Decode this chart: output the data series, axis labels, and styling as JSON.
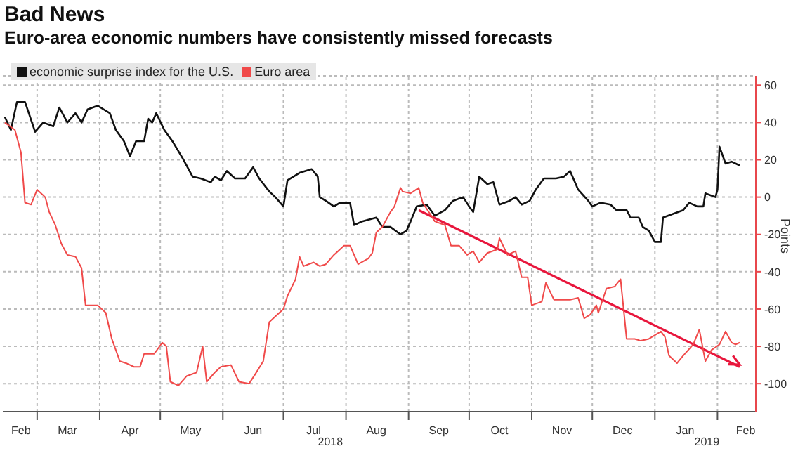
{
  "chart_data": {
    "type": "line",
    "title": "Bad News",
    "subtitle": "Euro-area economic numbers have consistently missed forecasts",
    "ylabel": "Points",
    "xlim": [
      "2018-02-12",
      "2019-02-20"
    ],
    "xticks": [
      {
        "value": "2018-02-21",
        "label": "Feb"
      },
      {
        "value": "2018-03-01",
        "label": null
      },
      {
        "value": "2018-03-16",
        "label": "Mar"
      },
      {
        "value": "2018-04-01",
        "label": null
      },
      {
        "value": "2018-04-16",
        "label": "Apr"
      },
      {
        "value": "2018-05-01",
        "label": null
      },
      {
        "value": "2018-05-16",
        "label": "May"
      },
      {
        "value": "2018-06-01",
        "label": null
      },
      {
        "value": "2018-06-16",
        "label": "Jun"
      },
      {
        "value": "2018-07-01",
        "label": null
      },
      {
        "value": "2018-07-16",
        "label": "Jul"
      },
      {
        "value": "2018-08-01",
        "label": null
      },
      {
        "value": "2018-08-16",
        "label": "Aug"
      },
      {
        "value": "2018-09-01",
        "label": null
      },
      {
        "value": "2018-09-16",
        "label": "Sep"
      },
      {
        "value": "2018-10-01",
        "label": null
      },
      {
        "value": "2018-10-16",
        "label": "Oct"
      },
      {
        "value": "2018-11-01",
        "label": null
      },
      {
        "value": "2018-11-16",
        "label": "Nov"
      },
      {
        "value": "2018-12-01",
        "label": null
      },
      {
        "value": "2018-12-16",
        "label": "Dec"
      },
      {
        "value": "2019-01-01",
        "label": null
      },
      {
        "value": "2019-01-16",
        "label": "Jan"
      },
      {
        "value": "2019-02-01",
        "label": null
      },
      {
        "value": "2019-02-15",
        "label": "Feb"
      }
    ],
    "ylim": [
      -115,
      65
    ],
    "yticks": [
      -100,
      -80,
      -60,
      -40,
      -20,
      0,
      20,
      40,
      60
    ],
    "grid": true,
    "legend": "top left",
    "annotations": [
      "2018",
      "2019"
    ],
    "series": [
      {
        "name": "economic surprise index for the U.S.",
        "color": "#111111",
        "x": [
          "2018-02-13",
          "2018-02-16",
          "2018-02-19",
          "2018-02-23",
          "2018-02-28",
          "2018-03-04",
          "2018-03-09",
          "2018-03-12",
          "2018-03-16",
          "2018-03-20",
          "2018-03-23",
          "2018-03-26",
          "2018-03-31",
          "2018-04-06",
          "2018-04-09",
          "2018-04-13",
          "2018-04-16",
          "2018-04-19",
          "2018-04-23",
          "2018-04-25",
          "2018-04-27",
          "2018-04-29",
          "2018-05-03",
          "2018-05-07",
          "2018-05-12",
          "2018-05-17",
          "2018-05-21",
          "2018-05-26",
          "2018-05-28",
          "2018-05-31",
          "2018-06-03",
          "2018-06-07",
          "2018-06-12",
          "2018-06-16",
          "2018-06-19",
          "2018-06-24",
          "2018-06-27",
          "2018-07-01",
          "2018-07-03",
          "2018-07-09",
          "2018-07-15",
          "2018-07-18",
          "2018-07-19",
          "2018-07-22",
          "2018-07-26",
          "2018-07-29",
          "2018-08-03",
          "2018-08-05",
          "2018-08-09",
          "2018-08-16",
          "2018-08-19",
          "2018-08-23",
          "2018-08-28",
          "2018-08-31",
          "2018-09-02",
          "2018-09-05",
          "2018-09-10",
          "2018-09-14",
          "2018-09-19",
          "2018-09-23",
          "2018-09-28",
          "2018-10-01",
          "2018-10-03",
          "2018-10-06",
          "2018-10-10",
          "2018-10-13",
          "2018-10-16",
          "2018-10-21",
          "2018-10-24",
          "2018-10-27",
          "2018-10-31",
          "2018-11-03",
          "2018-11-07",
          "2018-11-13",
          "2018-11-17",
          "2018-11-20",
          "2018-11-24",
          "2018-11-29",
          "2018-12-01",
          "2018-12-05",
          "2018-12-10",
          "2018-12-13",
          "2018-12-18",
          "2018-12-20",
          "2018-12-24",
          "2018-12-26",
          "2018-12-29",
          "2019-01-01",
          "2019-01-04",
          "2019-01-05",
          "2019-01-10",
          "2019-01-15",
          "2019-01-18",
          "2019-01-22",
          "2019-01-25",
          "2019-01-26",
          "2019-01-31",
          "2019-02-01",
          "2019-02-02",
          "2019-02-05",
          "2019-02-08",
          "2019-02-12"
        ],
        "values": [
          43,
          36,
          51,
          51,
          35,
          40,
          38,
          48,
          40,
          45,
          40,
          47,
          49,
          45,
          36,
          30,
          22,
          30,
          30,
          42,
          40,
          45,
          36,
          30,
          21,
          11,
          10,
          8,
          11,
          9,
          14,
          10,
          10,
          16,
          10,
          3,
          0,
          -5,
          9,
          13,
          15,
          11,
          0,
          -2,
          -5,
          -3,
          -3,
          -15,
          -13,
          -11,
          -16,
          -16,
          -20,
          -18,
          -13,
          -5,
          -4,
          -10,
          -7,
          -2,
          0,
          -5,
          -8,
          11,
          7,
          8,
          -4,
          -2,
          0,
          -4,
          -2,
          4,
          10,
          10,
          11,
          14,
          4,
          -2,
          -5,
          -3,
          -4,
          -7,
          -7,
          -11,
          -11,
          -16,
          -18,
          -24,
          -24,
          -11,
          -9,
          -7,
          -3,
          -5,
          -5,
          2,
          0,
          4,
          27,
          18,
          19,
          17
        ]
      },
      {
        "type": "line",
        "color": "#e8163c",
        "x": [
          "2018-09-06",
          "2019-02-12"
        ],
        "values": [
          -7,
          -91
        ]
      },
      {
        "name": "Euro area",
        "color": "#f04a4a",
        "x": [
          "2018-02-13",
          "2018-02-18",
          "2018-02-21",
          "2018-02-23",
          "2018-02-26",
          "2018-03-01",
          "2018-03-05",
          "2018-03-07",
          "2018-03-10",
          "2018-03-13",
          "2018-03-16",
          "2018-03-20",
          "2018-03-23",
          "2018-03-25",
          "2018-03-31",
          "2018-04-04",
          "2018-04-07",
          "2018-04-11",
          "2018-04-14",
          "2018-04-18",
          "2018-04-21",
          "2018-04-23",
          "2018-04-28",
          "2018-05-02",
          "2018-05-04",
          "2018-05-06",
          "2018-05-10",
          "2018-05-14",
          "2018-05-19",
          "2018-05-22",
          "2018-05-24",
          "2018-05-28",
          "2018-05-31",
          "2018-06-05",
          "2018-06-09",
          "2018-06-14",
          "2018-06-17",
          "2018-06-21",
          "2018-06-24",
          "2018-06-27",
          "2018-07-01",
          "2018-07-03",
          "2018-07-07",
          "2018-07-09",
          "2018-07-11",
          "2018-07-16",
          "2018-07-19",
          "2018-07-22",
          "2018-07-26",
          "2018-07-31",
          "2018-08-03",
          "2018-08-07",
          "2018-08-12",
          "2018-08-14",
          "2018-08-16",
          "2018-08-19",
          "2018-08-23",
          "2018-08-25",
          "2018-08-28",
          "2018-08-29",
          "2018-09-02",
          "2018-09-06",
          "2018-09-08",
          "2018-09-14",
          "2018-09-19",
          "2018-09-22",
          "2018-09-26",
          "2018-09-30",
          "2018-10-03",
          "2018-10-06",
          "2018-10-10",
          "2018-10-15",
          "2018-10-16",
          "2018-10-20",
          "2018-10-24",
          "2018-10-27",
          "2018-10-30",
          "2018-11-01",
          "2018-11-06",
          "2018-11-08",
          "2018-11-12",
          "2018-11-20",
          "2018-11-24",
          "2018-11-27",
          "2018-11-30",
          "2018-12-03",
          "2018-12-04",
          "2018-12-08",
          "2018-12-12",
          "2018-12-15",
          "2018-12-18",
          "2018-12-22",
          "2018-12-25",
          "2018-12-29",
          "2019-01-04",
          "2019-01-06",
          "2019-01-08",
          "2019-01-12",
          "2019-01-15",
          "2019-01-20",
          "2019-01-23",
          "2019-01-26",
          "2019-01-29",
          "2019-02-02",
          "2019-02-05",
          "2019-02-08",
          "2019-02-10",
          "2019-02-12"
        ],
        "values": [
          40,
          36,
          24,
          -3,
          -4,
          4,
          0,
          -8,
          -15,
          -25,
          -31,
          -32,
          -38,
          -58,
          -58,
          -62,
          -76,
          -88,
          -89,
          -91,
          -91,
          -84,
          -84,
          -78,
          -80,
          -99,
          -101,
          -96,
          -94,
          -80,
          -99,
          -94,
          -91,
          -90,
          -99,
          -100,
          -95,
          -88,
          -67,
          -64,
          -60,
          -53,
          -44,
          -32,
          -37,
          -35,
          -37,
          -36,
          -31,
          -26,
          -26,
          -36,
          -33,
          -30,
          -19,
          -16,
          -8,
          -5,
          5,
          3,
          2,
          5,
          -3,
          -13,
          -15,
          -26,
          -26,
          -31,
          -29,
          -35,
          -30,
          -28,
          -22,
          -31,
          -29,
          -43,
          -43,
          -58,
          -56,
          -46,
          -55,
          -55,
          -54,
          -65,
          -63,
          -58,
          -62,
          -49,
          -48,
          -44,
          -76,
          -76,
          -77,
          -76,
          -72,
          -75,
          -85,
          -89,
          -85,
          -79,
          -71,
          -88,
          -82,
          -79,
          -72,
          -78,
          -79,
          -78
        ]
      }
    ]
  }
}
